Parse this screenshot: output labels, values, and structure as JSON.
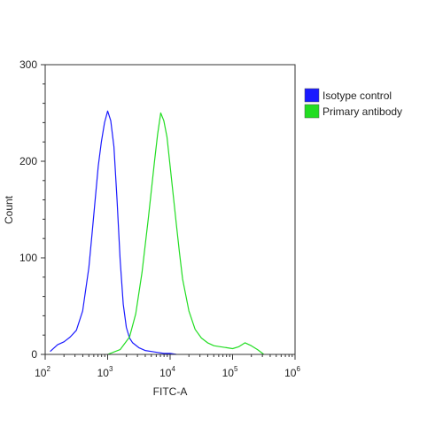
{
  "chart_data": {
    "type": "line",
    "title": "",
    "xlabel": "FITC-A",
    "ylabel": "Count",
    "x_scale": "log",
    "xlim": [
      100,
      1000000
    ],
    "ylim": [
      0,
      300
    ],
    "grid": false,
    "legend_position": "top-right",
    "y_ticks": [
      0,
      100,
      200,
      300
    ],
    "x_ticks": [
      {
        "value": 100,
        "base": "10",
        "exp": "2"
      },
      {
        "value": 1000,
        "base": "10",
        "exp": "3"
      },
      {
        "value": 10000,
        "base": "10",
        "exp": "4"
      },
      {
        "value": 100000,
        "base": "10",
        "exp": "5"
      },
      {
        "value": 1000000,
        "base": "10",
        "exp": "6"
      }
    ],
    "series": [
      {
        "name": "Isotype control",
        "color": "#1a1aff",
        "x": [
          120,
          158,
          200,
          251,
          316,
          398,
          501,
          562,
          631,
          708,
          794,
          891,
          1000,
          1122,
          1259,
          1413,
          1585,
          1778,
          1995,
          2239,
          2512,
          3162,
          3981,
          5012,
          6310,
          7943,
          10000,
          12589
        ],
        "y": [
          3,
          10,
          13,
          18,
          25,
          45,
          90,
          125,
          160,
          195,
          220,
          240,
          252,
          242,
          215,
          160,
          98,
          52,
          28,
          17,
          12,
          7,
          4,
          3,
          2,
          1,
          1,
          0
        ]
      },
      {
        "name": "Primary antibody",
        "color": "#22dd22",
        "x": [
          1000,
          1585,
          2239,
          2818,
          3548,
          4467,
          5623,
          6310,
          7079,
          7943,
          8913,
          10000,
          11220,
          12589,
          14125,
          15849,
          19953,
          25119,
          31623,
          39811,
          50119,
          63096,
          79433,
          100000,
          125893,
          158489,
          199526,
          251189,
          316228
        ],
        "y": [
          0,
          5,
          18,
          42,
          85,
          140,
          200,
          228,
          250,
          242,
          225,
          195,
          165,
          135,
          105,
          78,
          45,
          26,
          17,
          12,
          9,
          8,
          7,
          6,
          8,
          12,
          9,
          5,
          0
        ]
      }
    ]
  }
}
